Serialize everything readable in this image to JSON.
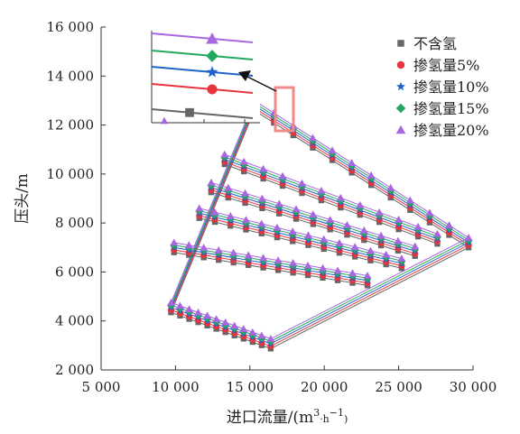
{
  "chart_data": {
    "type": "scatter",
    "xlabel": "进口流量/(m3·h−1)",
    "xlabel_parts": {
      "main": "进口流量/(m",
      "sup1": "3",
      "mid": "·h",
      "sup2": "−1",
      "end": ")"
    },
    "ylabel": "压头/m",
    "xlim": [
      5000,
      30000
    ],
    "ylim": [
      2000,
      16000
    ],
    "xticks": [
      5000,
      10000,
      15000,
      20000,
      25000,
      30000
    ],
    "yticks": [
      2000,
      4000,
      6000,
      8000,
      10000,
      12000,
      14000,
      16000
    ],
    "xtick_labels": [
      "5 000",
      "10 000",
      "15 000",
      "20 000",
      "25 000",
      "30 000"
    ],
    "ytick_labels": [
      "2 000",
      "4 000",
      "6 000",
      "8 000",
      "10 000",
      "12 000",
      "14 000",
      "16 000"
    ],
    "legend_position": "top-right",
    "series": [
      {
        "name": "不含氢",
        "marker": "square",
        "color": "#666666",
        "offset": 0
      },
      {
        "name": "掺氢量5%",
        "marker": "circle",
        "color": "#e8343c",
        "offset": 100
      },
      {
        "name": "掺氢量10%",
        "marker": "star",
        "color": "#1e64c8",
        "offset": 200
      },
      {
        "name": "掺氢量15%",
        "marker": "diamond",
        "color": "#23a860",
        "offset": 300
      },
      {
        "name": "掺氢量20%",
        "marker": "triangle",
        "color": "#a866e0",
        "offset": 400
      }
    ],
    "speed_lines_base": [
      {
        "start": [
          9700,
          4350
        ],
        "end": [
          16400,
          2870
        ],
        "points": 12
      },
      {
        "start": [
          9900,
          6800
        ],
        "end": [
          22900,
          5450
        ],
        "points": 14
      },
      {
        "start": [
          11600,
          8200
        ],
        "end": [
          25200,
          6150
        ],
        "points": 14
      },
      {
        "start": [
          12400,
          9250
        ],
        "end": [
          26100,
          6650
        ],
        "points": 13
      },
      {
        "start": [
          13300,
          10400
        ],
        "end": [
          27600,
          7150
        ],
        "points": 12
      },
      {
        "start": [
          15300,
          12600
        ],
        "end": [
          29700,
          7000
        ],
        "points": 12
      }
    ],
    "envelope_lines_base": [
      {
        "start": [
          9700,
          4350
        ],
        "end": [
          15300,
          12600
        ]
      },
      {
        "start": [
          16400,
          2870
        ],
        "end": [
          29700,
          7000
        ]
      }
    ],
    "inset_series_levels": [
      0,
      1,
      2,
      3,
      4
    ]
  }
}
